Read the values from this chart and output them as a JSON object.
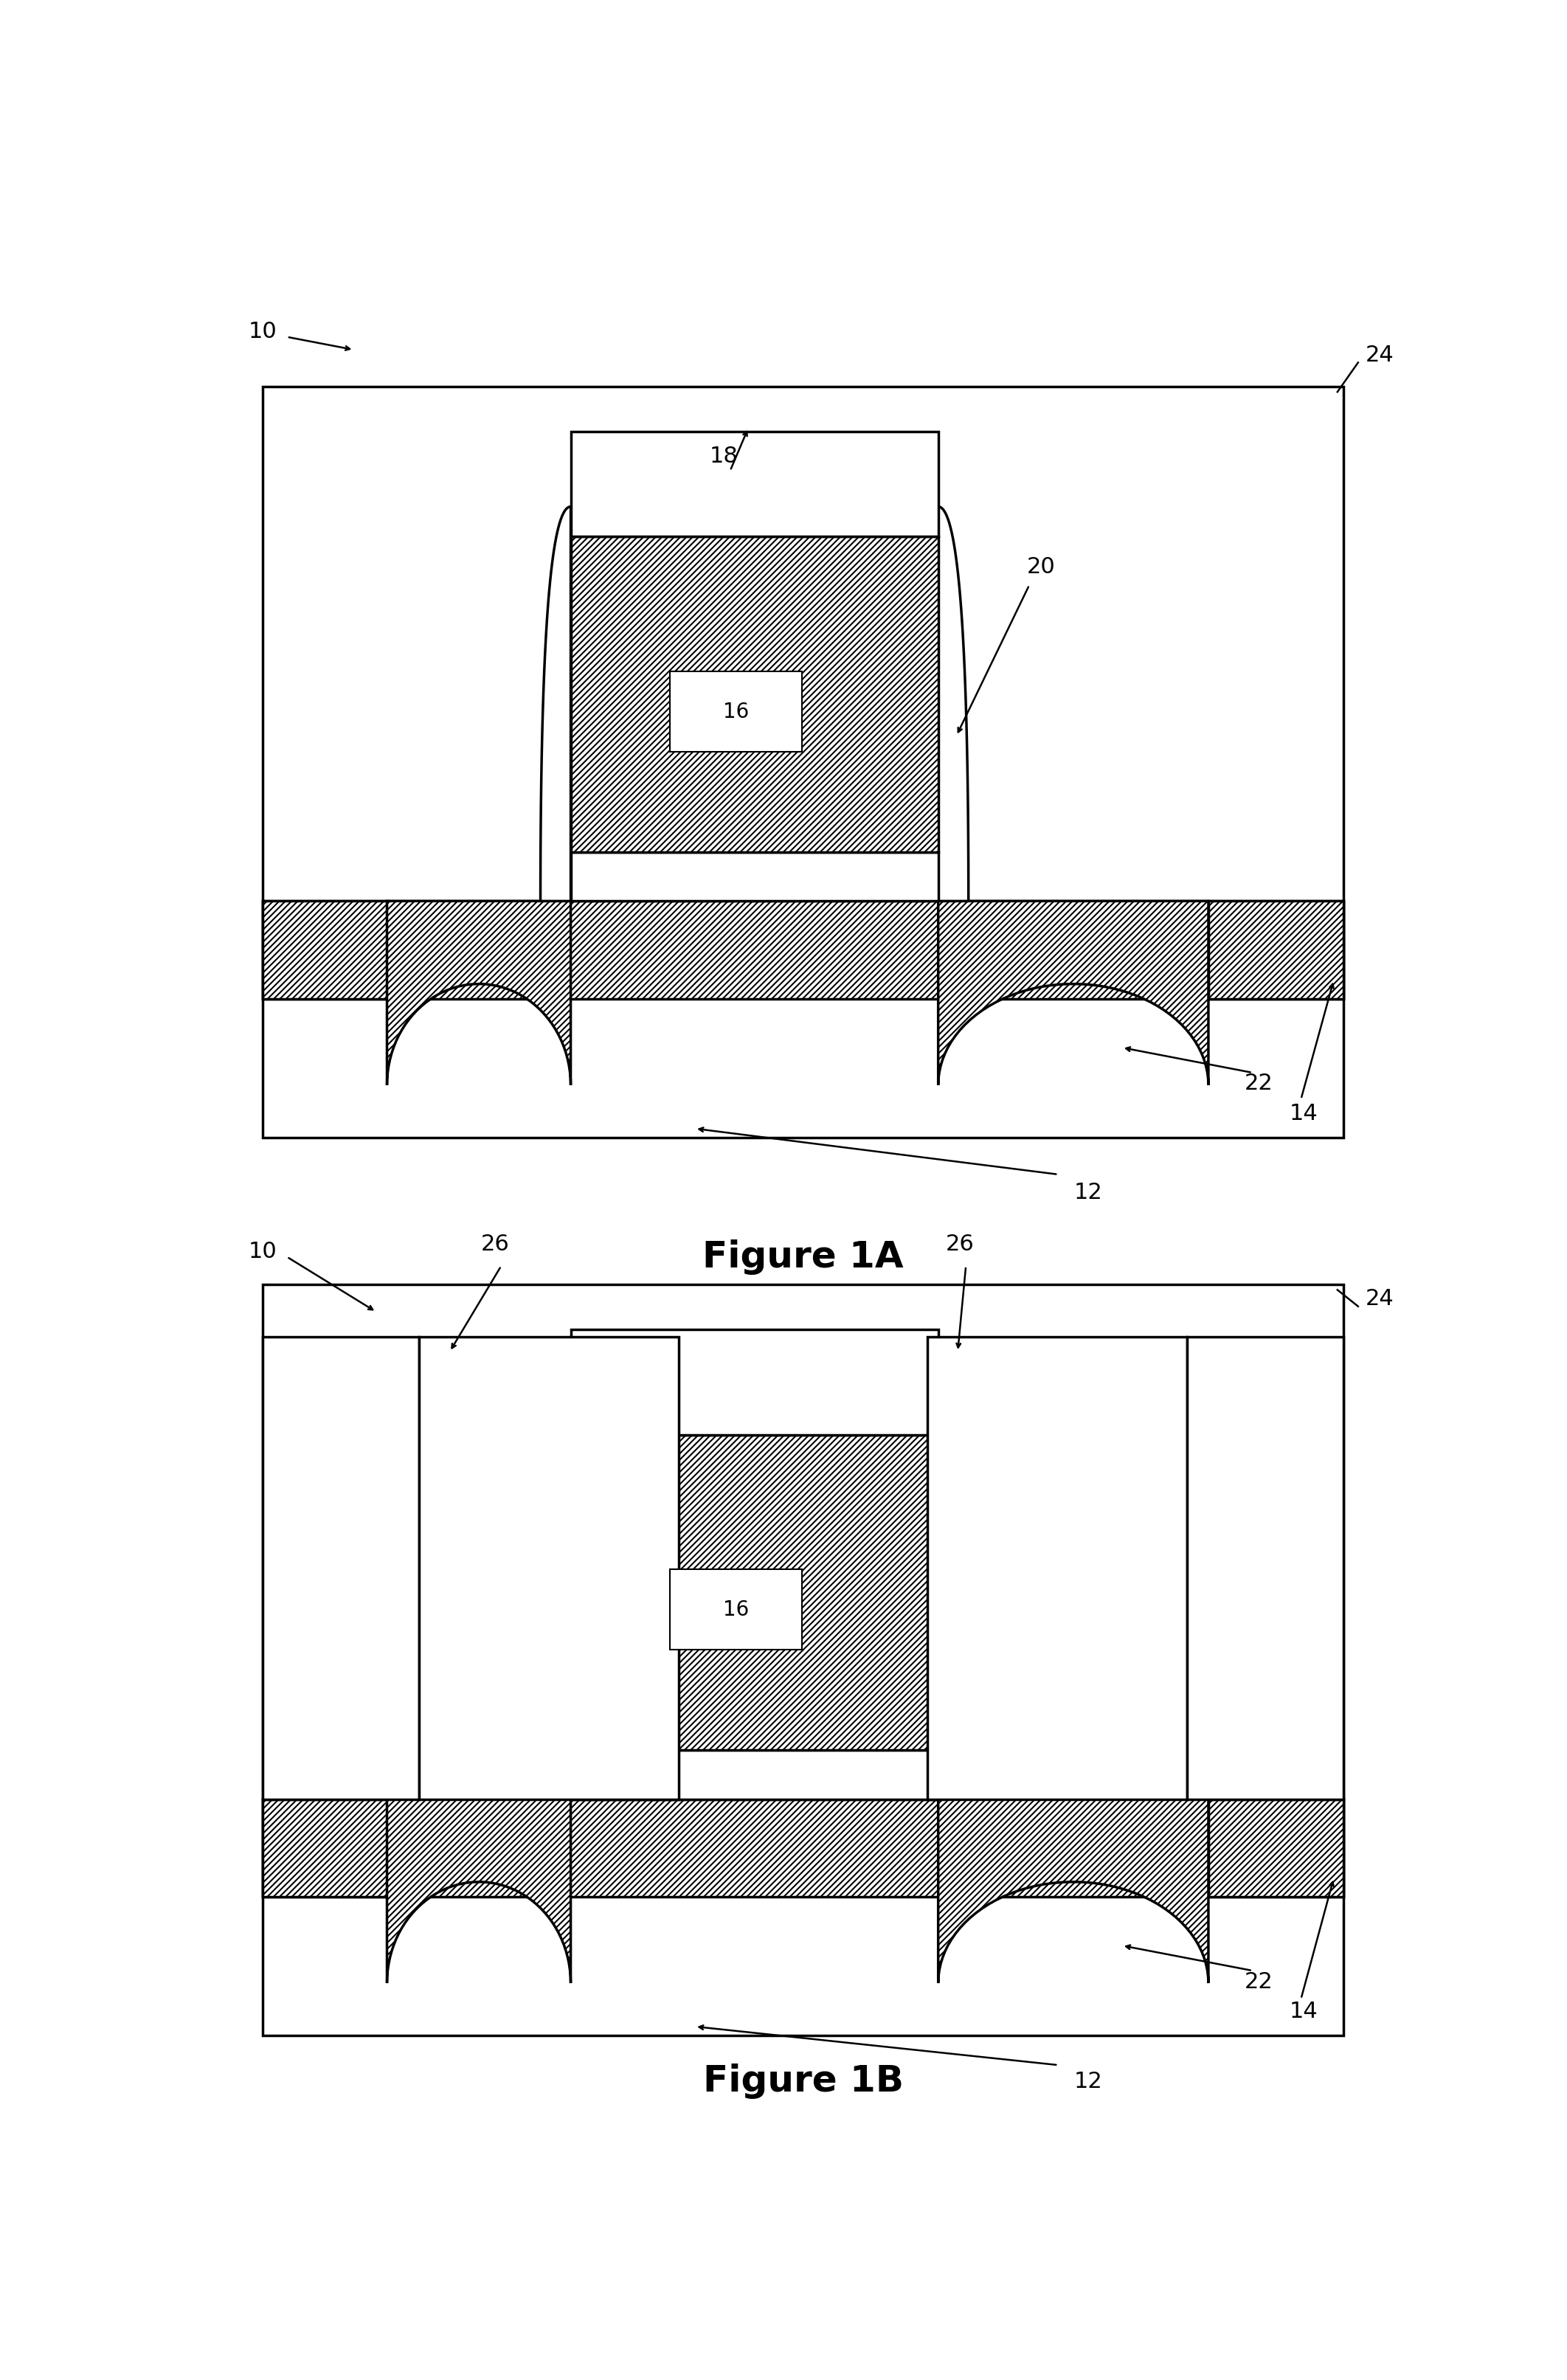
{
  "fig_width": 21.24,
  "fig_height": 32.26,
  "bg_color": "#ffffff",
  "line_color": "#000000",
  "line_width": 2.5,
  "hatch_linewidth": 1.5,
  "label_fontsize": 22,
  "title_fontsize": 36,
  "fig1A_title": "Figure 1A",
  "fig1B_title": "Figure 1B"
}
